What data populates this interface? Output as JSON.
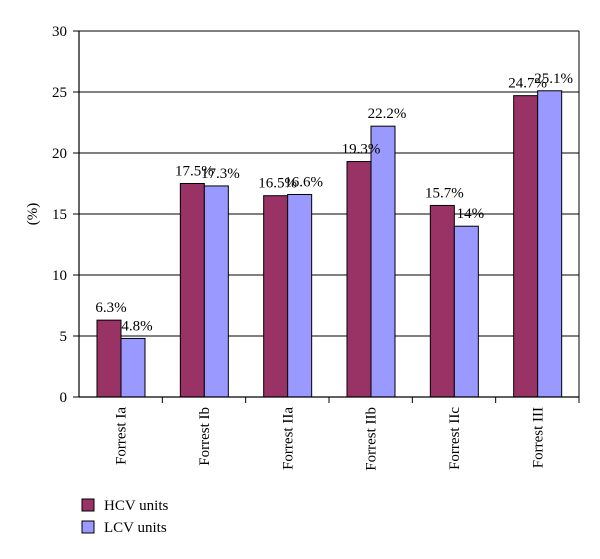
{
  "chart_data": {
    "type": "bar",
    "title": "",
    "xlabel": "",
    "ylabel": "(%)",
    "ylim": [
      0,
      30
    ],
    "yticks": [
      0,
      5,
      10,
      15,
      20,
      25,
      30
    ],
    "grid": true,
    "legend_position": "bottom-left",
    "categories": [
      "Forrest Ia",
      "Forrest Ib",
      "Forrest IIa",
      "Forrest IIb",
      "Forrest IIc",
      "Forrest III"
    ],
    "series": [
      {
        "name": "HCV units",
        "color": "#993366",
        "values": [
          6.3,
          17.5,
          16.5,
          19.3,
          15.7,
          24.7
        ],
        "labels": [
          "6.3%",
          "17.5%",
          "16.5%",
          "19.3%",
          "15.7%",
          "24.7%"
        ]
      },
      {
        "name": "LCV units",
        "color": "#9999ff",
        "values": [
          4.8,
          17.3,
          16.6,
          22.2,
          14.0,
          25.1
        ],
        "labels": [
          "4.8%",
          "17.3%",
          "16.6%",
          "22.2%",
          "14%",
          "25.1%"
        ]
      }
    ]
  }
}
